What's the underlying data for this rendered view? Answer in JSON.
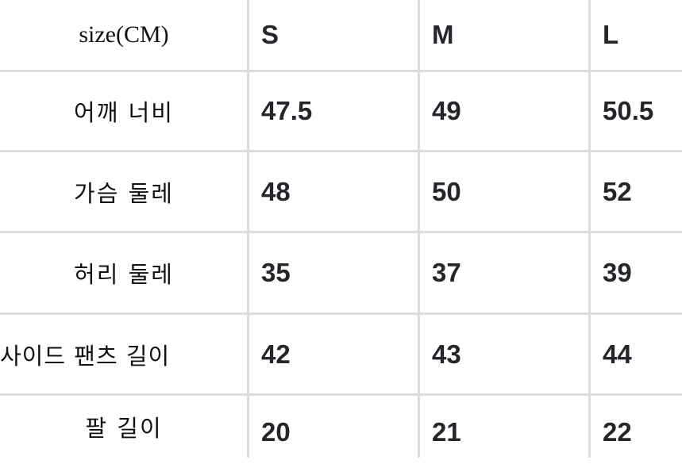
{
  "table": {
    "header": [
      "size(CM)",
      "S",
      "M",
      "L"
    ],
    "rows": [
      {
        "label": "어깨 너비",
        "values": [
          "47.5",
          "49",
          "50.5"
        ]
      },
      {
        "label": "가슴 둘레",
        "values": [
          "48",
          "50",
          "52"
        ]
      },
      {
        "label": "허리 둘레",
        "values": [
          "35",
          "37",
          "39"
        ]
      },
      {
        "label": "사이드 팬츠 길이",
        "values": [
          "42",
          "43",
          "44"
        ]
      },
      {
        "label": "팔 길이",
        "values": [
          "20",
          "21",
          "22"
        ]
      }
    ]
  }
}
